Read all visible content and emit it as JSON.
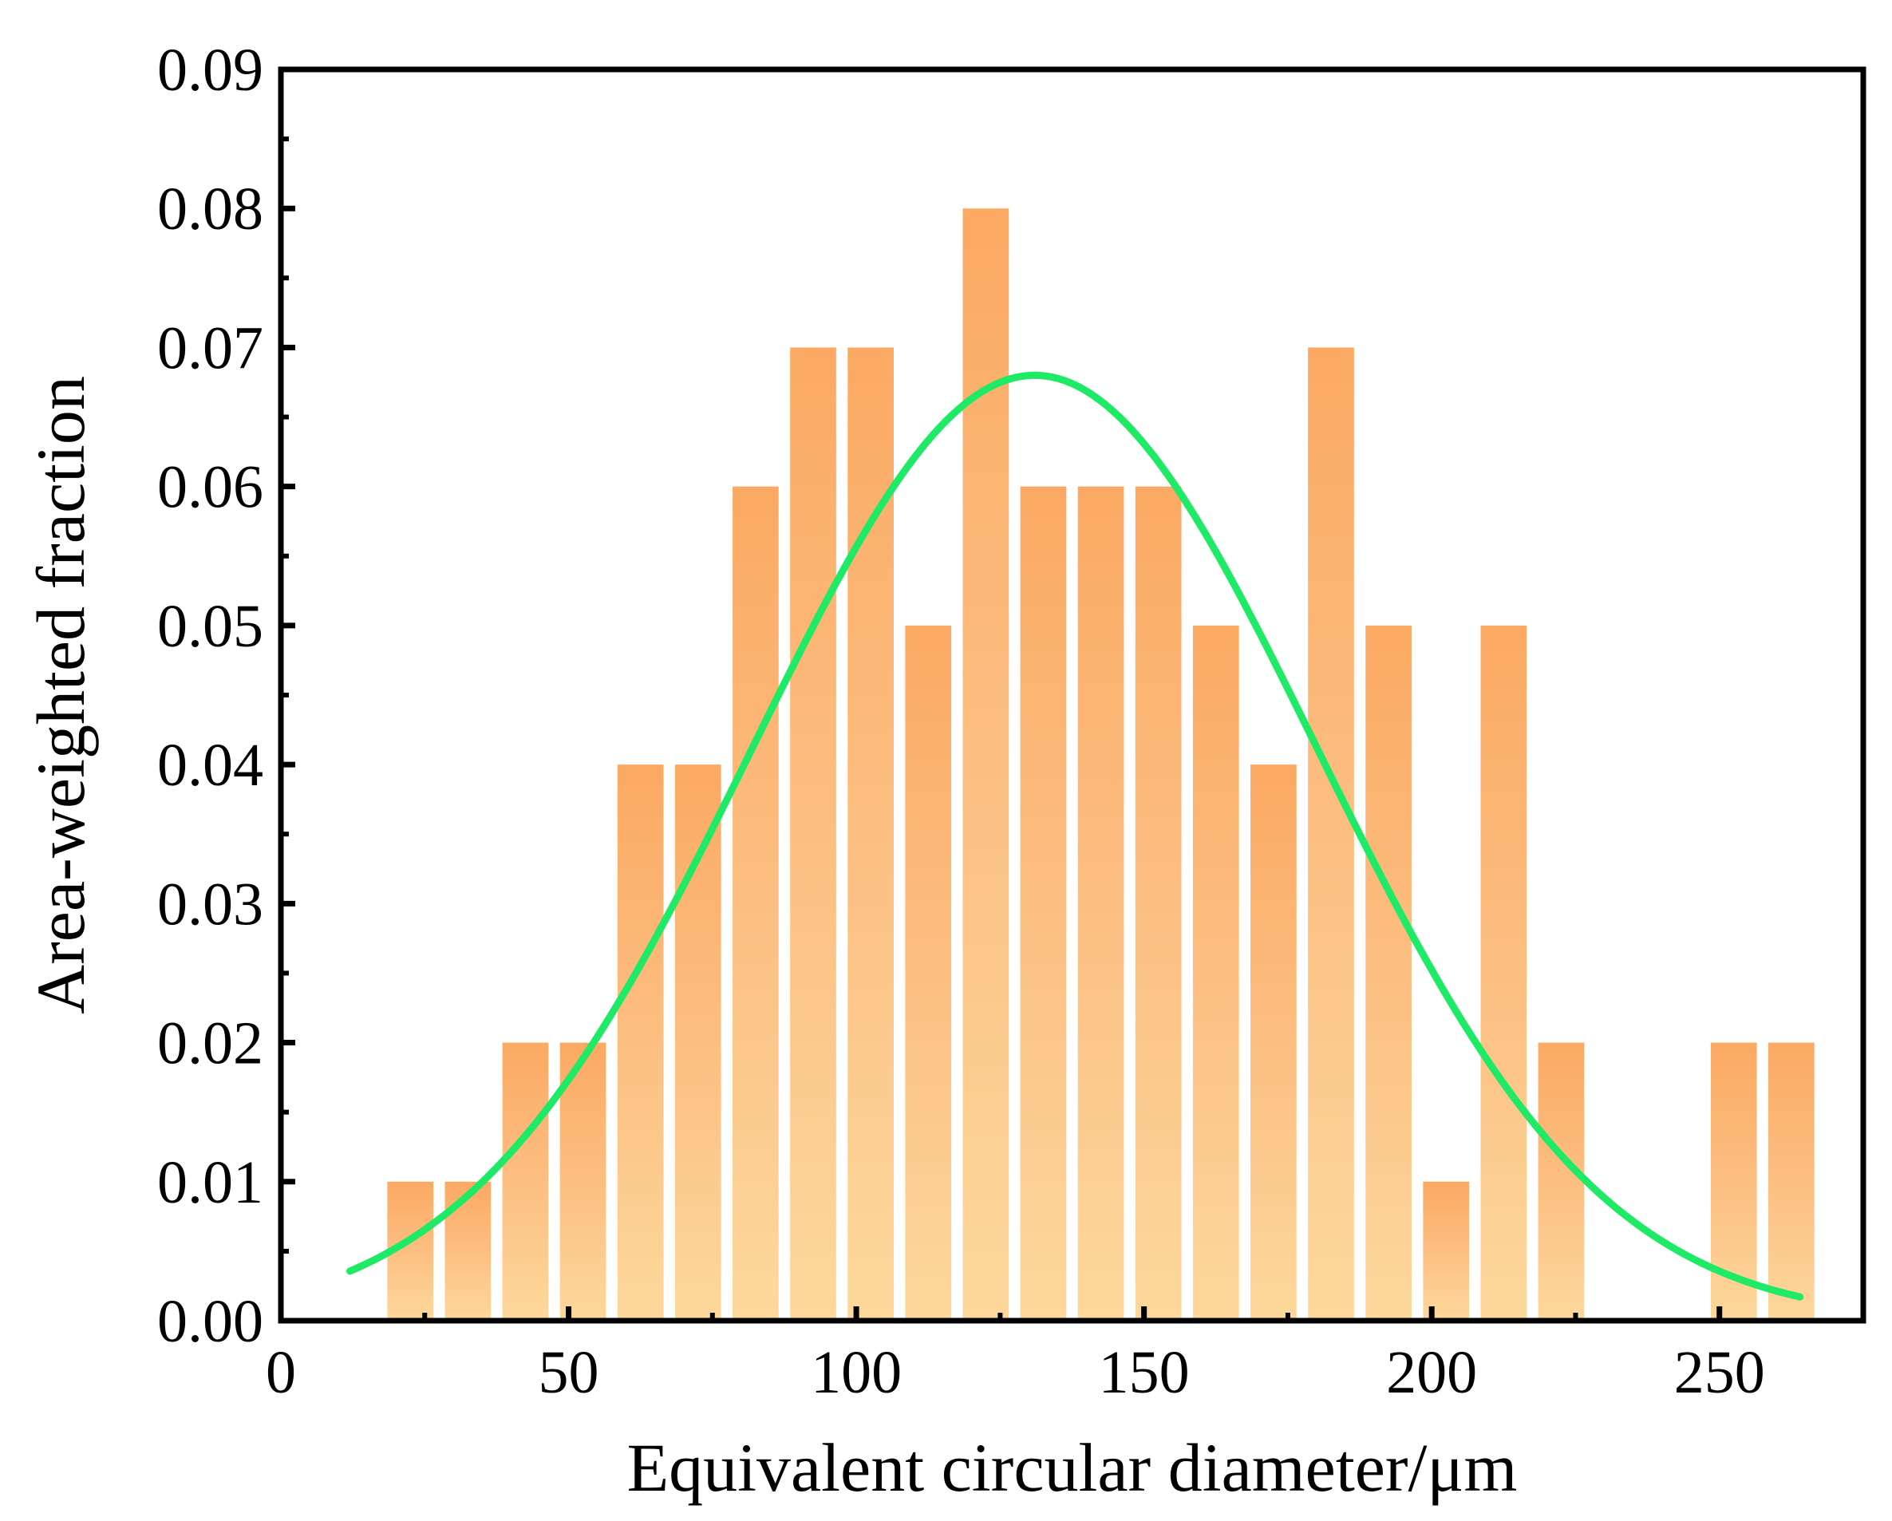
{
  "chart_data": {
    "type": "bar",
    "title": "",
    "xlabel": "Equivalent circular diameter/μm",
    "ylabel": "Area-weighted fraction",
    "xlim": [
      0,
      275
    ],
    "ylim": [
      0,
      0.09
    ],
    "xticks": [
      0,
      50,
      100,
      150,
      200,
      250
    ],
    "xtick_labels": [
      "0",
      "50",
      "100",
      "150",
      "200",
      "250"
    ],
    "yticks": [
      0,
      0.01,
      0.02,
      0.03,
      0.04,
      0.05,
      0.06,
      0.07,
      0.08,
      0.09
    ],
    "ytick_labels": [
      "0.00",
      "0.01",
      "0.02",
      "0.03",
      "0.04",
      "0.05",
      "0.06",
      "0.07",
      "0.08",
      "0.09"
    ],
    "bin_width": 10,
    "bin_centers": [
      22.5,
      32.5,
      42.5,
      52.5,
      62.5,
      72.5,
      82.5,
      92.5,
      102.5,
      112.5,
      122.5,
      132.5,
      142.5,
      152.5,
      162.5,
      172.5,
      182.5,
      192.5,
      202.5,
      212.5,
      222.5,
      252.5,
      262.5
    ],
    "values": [
      0.01,
      0.01,
      0.02,
      0.02,
      0.04,
      0.04,
      0.06,
      0.07,
      0.07,
      0.05,
      0.08,
      0.06,
      0.06,
      0.06,
      0.05,
      0.04,
      0.07,
      0.05,
      0.01,
      0.05,
      0.02,
      0.02,
      0.02
    ],
    "fit": {
      "type": "gaussian",
      "mean": 131,
      "sigma": 49,
      "peak": 0.068,
      "x_range": [
        12,
        264
      ]
    },
    "colors": {
      "bar_top": "#fba963",
      "bar_bottom": "#fdd89b",
      "fit_line": "#1eea66",
      "axes": "#000000"
    },
    "grid": false,
    "legend": "none"
  }
}
